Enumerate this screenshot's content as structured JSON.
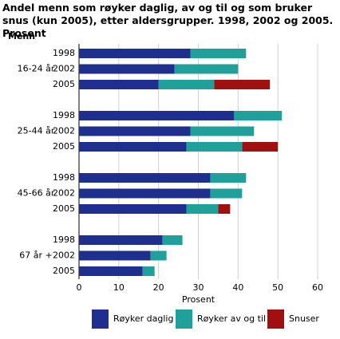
{
  "chart_data": {
    "type": "stacked-barh",
    "title": "Andel menn som røyker daglig, av og til og som bruker snus (kun 2005), etter aldersgrupper. 1998, 2002 og 2005. Prosent",
    "panel_label": "Menn",
    "groups": [
      "16-24 år",
      "25-44 år",
      "45-66 år",
      "67 år +"
    ],
    "categories": [
      "1998",
      "2002",
      "2005",
      "1998",
      "2002",
      "2005",
      "1998",
      "2002",
      "2005",
      "1998",
      "2002",
      "2005"
    ],
    "series": [
      {
        "name": "Røyker daglig",
        "color": "#1f2f8f",
        "values": [
          28,
          24,
          20,
          39,
          28,
          27,
          33,
          33,
          27,
          21,
          18,
          16
        ]
      },
      {
        "name": "Røyker av og til",
        "color": "#20a09a",
        "values": [
          14,
          16,
          14,
          12,
          16,
          14,
          9,
          8,
          8,
          5,
          4,
          3
        ]
      },
      {
        "name": "Snuser",
        "color": "#a01010",
        "values": [
          null,
          null,
          14,
          null,
          null,
          9,
          null,
          null,
          3,
          null,
          null,
          null
        ]
      }
    ],
    "xlabel": "Prosent",
    "xlim": [
      0,
      60
    ],
    "xticks": [
      0,
      10,
      20,
      30,
      40,
      50,
      60
    ],
    "grid": true
  }
}
